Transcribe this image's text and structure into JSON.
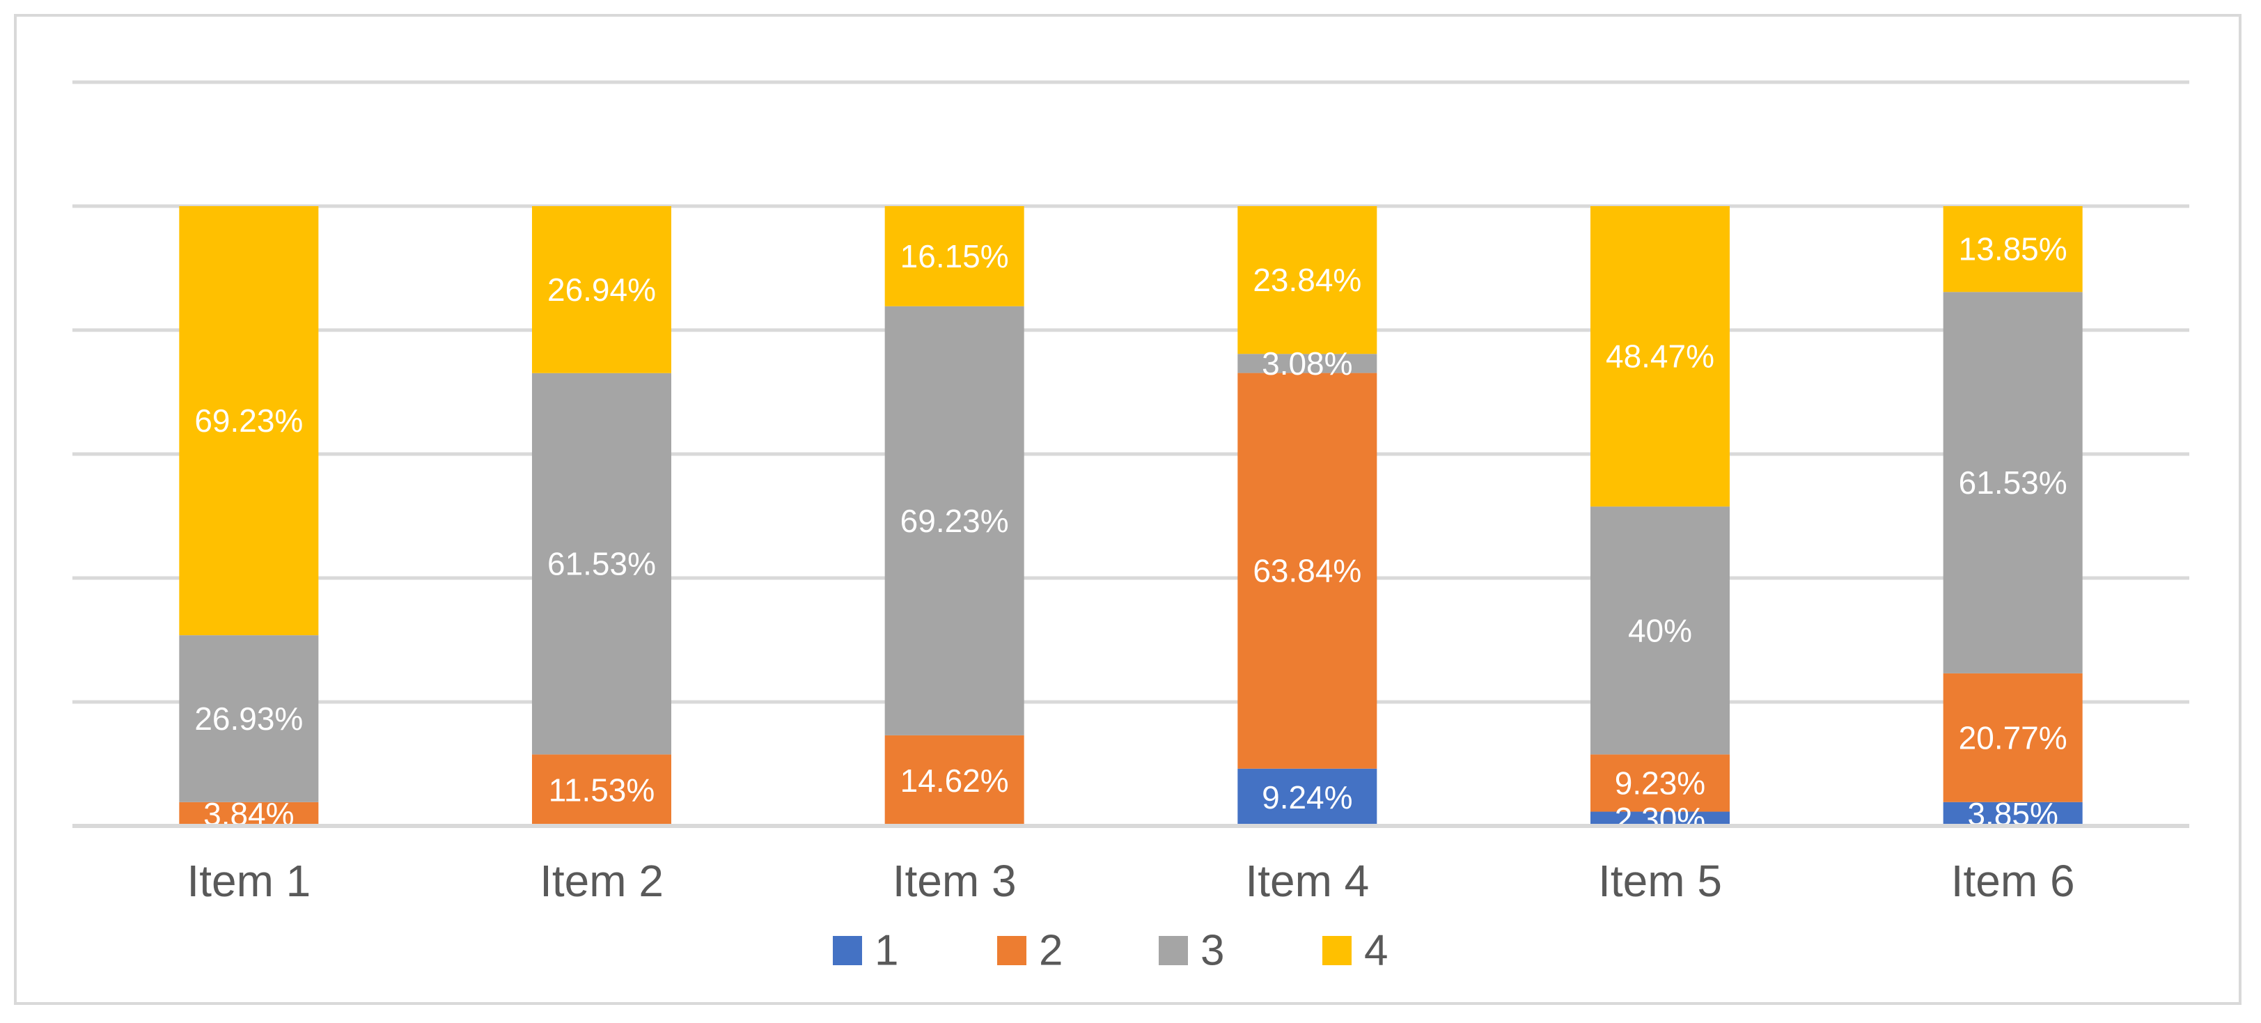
{
  "chart_data": {
    "type": "bar",
    "stacked": true,
    "categories": [
      "Item 1",
      "Item 2",
      "Item 3",
      "Item 4",
      "Item 5",
      "Item 6"
    ],
    "series": [
      {
        "name": "1",
        "color": "#4472c4",
        "values": [
          0,
          0,
          0,
          9.24,
          2.3,
          3.85
        ],
        "labels": [
          "",
          "",
          "",
          "9.24%",
          "2.30%",
          "3.85%"
        ]
      },
      {
        "name": "2",
        "color": "#ed7d31",
        "values": [
          3.84,
          11.53,
          14.62,
          63.84,
          9.23,
          20.77
        ],
        "labels": [
          "3.84%",
          "11.53%",
          "14.62%",
          "63.84%",
          "9.23%",
          "20.77%"
        ]
      },
      {
        "name": "3",
        "color": "#a5a5a5",
        "values": [
          26.93,
          61.53,
          69.23,
          3.08,
          40,
          61.53
        ],
        "labels": [
          "26.93%",
          "61.53%",
          "69.23%",
          "3.08%",
          "40%",
          "61.53%"
        ]
      },
      {
        "name": "4",
        "color": "#ffc000",
        "values": [
          69.23,
          26.94,
          16.15,
          23.84,
          48.47,
          13.85
        ],
        "labels": [
          "69.23%",
          "26.94%",
          "16.15%",
          "23.84%",
          "48.47%",
          "13.85%"
        ]
      }
    ],
    "ylim": [
      0,
      120
    ],
    "grid": true,
    "legend": "bottom",
    "title": "",
    "xlabel": "",
    "ylabel": ""
  }
}
